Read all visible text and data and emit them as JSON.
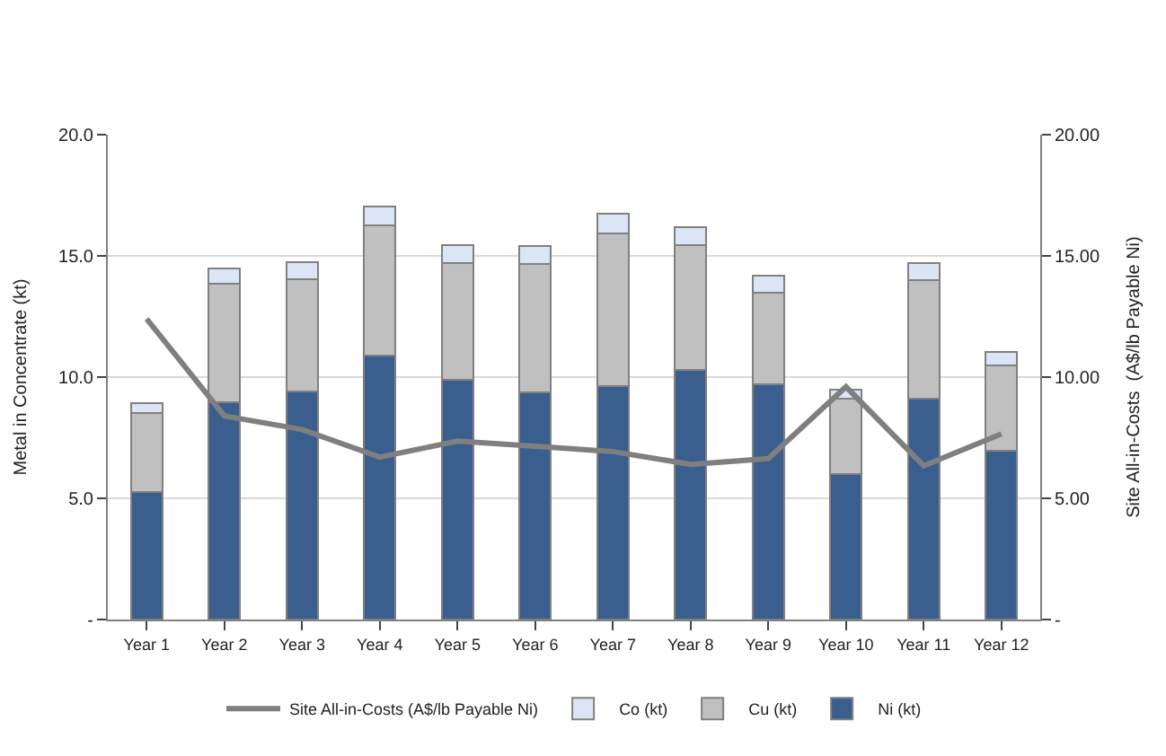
{
  "chart_data": {
    "type": "bar",
    "stacked": true,
    "categories": [
      "Year 1",
      "Year 2",
      "Year 3",
      "Year 4",
      "Year 5",
      "Year 6",
      "Year 7",
      "Year 8",
      "Year 9",
      "Year 10",
      "Year 11",
      "Year 12"
    ],
    "series": [
      {
        "name": "Ni (kt)",
        "color": "#3a5f8f",
        "values": [
          5.27,
          8.95,
          9.4,
          10.9,
          9.9,
          9.36,
          9.64,
          10.3,
          9.7,
          6.0,
          9.1,
          6.95
        ]
      },
      {
        "name": "Cu (kt)",
        "color": "#c0c0c0",
        "values": [
          3.25,
          4.9,
          4.65,
          5.35,
          4.8,
          5.3,
          6.3,
          5.15,
          3.8,
          3.1,
          4.9,
          3.55
        ]
      },
      {
        "name": "Co (kt)",
        "color": "#dbe5f5",
        "values": [
          0.4,
          0.65,
          0.7,
          0.8,
          0.75,
          0.75,
          0.8,
          0.75,
          0.7,
          0.4,
          0.7,
          0.55
        ]
      },
      {
        "name": "Site All-in-Costs (A$/lb Payable Ni)",
        "type": "line",
        "axis": "y2",
        "color": "#7f7f7f",
        "values": [
          12.4,
          8.4,
          7.84,
          6.7,
          7.36,
          7.15,
          6.93,
          6.4,
          6.64,
          9.6,
          6.34,
          7.66
        ]
      }
    ],
    "ylabel": "Metal in Concentrate (kt)",
    "y2label": "Site All-in-Costs  (A$/lb Payable Ni)",
    "ylim": [
      0,
      20
    ],
    "yticks": [
      {
        "value": 0,
        "label": "-"
      },
      {
        "value": 5,
        "label": "5.0"
      },
      {
        "value": 10,
        "label": "10.0"
      },
      {
        "value": 15,
        "label": "15.0"
      },
      {
        "value": 20,
        "label": "20.0"
      }
    ],
    "y2lim": [
      0,
      20
    ],
    "y2ticks": [
      {
        "value": 0,
        "label": "-"
      },
      {
        "value": 5,
        "label": "5.00"
      },
      {
        "value": 10,
        "label": "10.00"
      },
      {
        "value": 15,
        "label": "15.00"
      },
      {
        "value": 20,
        "label": "20.00"
      }
    ],
    "grid": "y",
    "legend": "bottom",
    "marker": "none",
    "line_style": "solid"
  }
}
